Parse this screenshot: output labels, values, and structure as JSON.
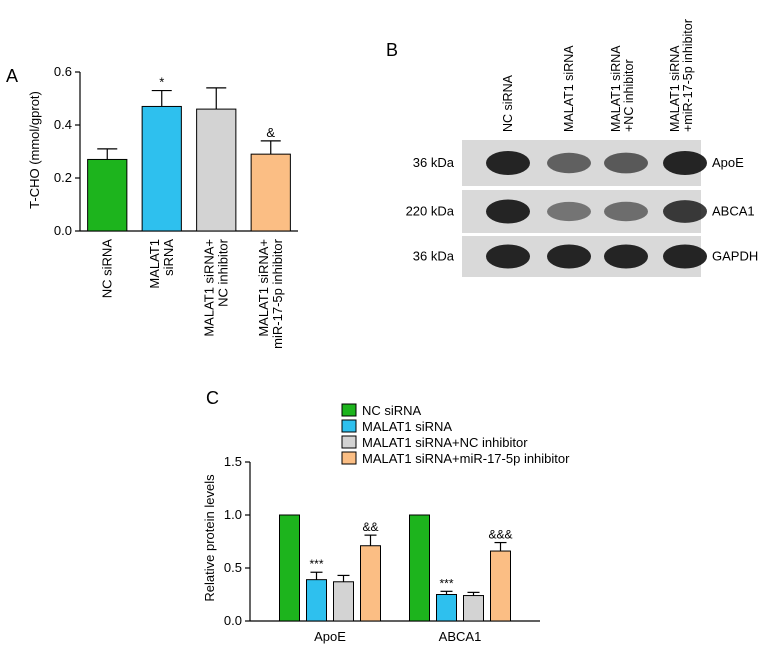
{
  "colors": {
    "nc_sirna": "#1db41d",
    "malat1_sirna": "#2ec0ee",
    "nc_inhibitor": "#d3d3d3",
    "mir_inhibitor": "#fbbe84"
  },
  "panels": {
    "a": "A",
    "b": "B",
    "c": "C"
  },
  "blot": {
    "lanes": [
      "NC siRNA",
      "MALAT1 siRNA",
      "MALAT1 siRNA +NC inhibitor",
      "MALAT1 siRNA +miR-17-5p inhibitor"
    ],
    "rows": [
      {
        "weight": "36 kDa",
        "protein": "ApoE",
        "intensity": [
          1.0,
          0.55,
          0.6,
          1.0
        ]
      },
      {
        "weight": "220 kDa",
        "protein": "ABCA1",
        "intensity": [
          1.0,
          0.4,
          0.45,
          0.85
        ]
      },
      {
        "weight": "36 kDa",
        "protein": "GAPDH",
        "intensity": [
          1.0,
          1.0,
          1.0,
          1.0
        ]
      }
    ]
  },
  "chart_data": [
    {
      "type": "bar",
      "panel": "A",
      "ylabel": "T-CHO (mmol/gprot)",
      "ylim": [
        0,
        0.6
      ],
      "yticks": [
        "0.0",
        "0.2",
        "0.4",
        "0.6"
      ],
      "categories": [
        "NC siRNA",
        "MALAT1 siRNA",
        "MALAT1 siRNA+ NC inhibitor",
        "MALAT1 siRNA+ miR-17-5p inhibitor"
      ],
      "values": [
        0.27,
        0.47,
        0.46,
        0.29
      ],
      "errors": [
        0.04,
        0.06,
        0.08,
        0.05
      ],
      "annotations": [
        "",
        "*",
        "",
        "&"
      ]
    },
    {
      "type": "bar",
      "panel": "C",
      "ylabel": "Relative protein levels",
      "ylim": [
        0,
        1.5
      ],
      "yticks": [
        "0.0",
        "0.5",
        "1.0",
        "1.5"
      ],
      "categories": [
        "ApoE",
        "ABCA1"
      ],
      "legend": [
        "NC siRNA",
        "MALAT1 siRNA",
        "MALAT1 siRNA+NC inhibitor",
        "MALAT1 siRNA+miR-17-5p inhibitor"
      ],
      "series": [
        {
          "name": "NC siRNA",
          "values": [
            1.0,
            1.0
          ],
          "errors": [
            0,
            0
          ],
          "annotations": [
            "",
            ""
          ]
        },
        {
          "name": "MALAT1 siRNA",
          "values": [
            0.39,
            0.25
          ],
          "errors": [
            0.07,
            0.03
          ],
          "annotations": [
            "***",
            "***"
          ]
        },
        {
          "name": "MALAT1 siRNA+NC inhibitor",
          "values": [
            0.37,
            0.24
          ],
          "errors": [
            0.06,
            0.03
          ],
          "annotations": [
            "",
            ""
          ]
        },
        {
          "name": "MALAT1 siRNA+miR-17-5p inhibitor",
          "values": [
            0.71,
            0.66
          ],
          "errors": [
            0.1,
            0.08
          ],
          "annotations": [
            "&&",
            "&&&"
          ]
        }
      ]
    }
  ]
}
